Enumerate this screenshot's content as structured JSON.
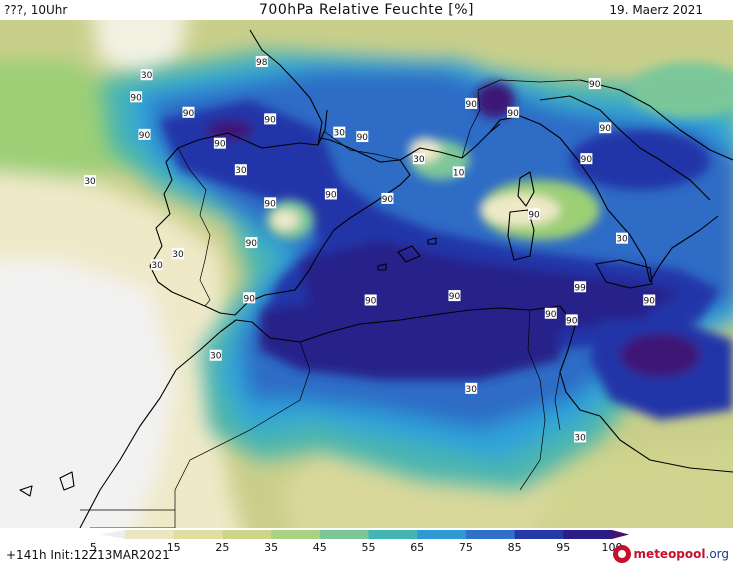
{
  "header": {
    "left": "???, 10Uhr",
    "title": "700hPa Relative Feuchte [%]",
    "date": "19. Maerz 2021"
  },
  "footer": {
    "run": "+141h  Init:12Z13MAR2021",
    "logo_main": "meteopool",
    "logo_tld": ".org"
  },
  "colors": {
    "dry": "#f4f4f4",
    "sand": "#efe9c8",
    "olive": "#c9cf8a",
    "green": "#9ccf76",
    "teal": "#49b5b0",
    "cyan": "#2fa3d9",
    "blue": "#2d6cc6",
    "darkblue": "#2436a8",
    "navy": "#27248a",
    "purple": "#3c1876"
  },
  "scale": {
    "ticks": [
      "5",
      "15",
      "25",
      "35",
      "45",
      "55",
      "65",
      "75",
      "85",
      "95",
      "100"
    ],
    "colors": [
      "#eeeeee",
      "#ece6c0",
      "#e0dfa2",
      "#cdd58a",
      "#a9d283",
      "#7cc79a",
      "#45b5b4",
      "#2e9ad4",
      "#2f70c8",
      "#253aa6",
      "#2a1e86",
      "#4a1170"
    ]
  },
  "contour_labels": [
    {
      "text": "90",
      "lon": -9.0,
      "lat": 45.0
    },
    {
      "text": "90",
      "lon": -6.5,
      "lat": 44.3
    },
    {
      "text": "90",
      "lon": -8.6,
      "lat": 43.3
    },
    {
      "text": "90",
      "lon": -5.0,
      "lat": 42.9
    },
    {
      "text": "90",
      "lon": -2.6,
      "lat": 44.0
    },
    {
      "text": "98",
      "lon": -3.0,
      "lat": 46.6
    },
    {
      "text": "30",
      "lon": -8.5,
      "lat": 46.0
    },
    {
      "text": "30",
      "lon": -11.2,
      "lat": 41.2
    },
    {
      "text": "30",
      "lon": -4.0,
      "lat": 41.7
    },
    {
      "text": "30",
      "lon": -8.0,
      "lat": 37.4
    },
    {
      "text": "30",
      "lon": -7.0,
      "lat": 37.9
    },
    {
      "text": "90",
      "lon": -2.6,
      "lat": 40.2
    },
    {
      "text": "90",
      "lon": -3.5,
      "lat": 38.4
    },
    {
      "text": "90",
      "lon": 0.3,
      "lat": 40.6
    },
    {
      "text": "90",
      "lon": 3.0,
      "lat": 40.4
    },
    {
      "text": "30",
      "lon": 0.7,
      "lat": 43.4
    },
    {
      "text": "90",
      "lon": 1.8,
      "lat": 43.2
    },
    {
      "text": "30",
      "lon": 4.5,
      "lat": 42.2
    },
    {
      "text": "10",
      "lon": 6.4,
      "lat": 41.6
    },
    {
      "text": "90",
      "lon": 7.0,
      "lat": 44.7
    },
    {
      "text": "90",
      "lon": 9.0,
      "lat": 44.3
    },
    {
      "text": "90",
      "lon": 12.9,
      "lat": 45.6
    },
    {
      "text": "90",
      "lon": 13.4,
      "lat": 43.6
    },
    {
      "text": "90",
      "lon": 12.5,
      "lat": 42.2
    },
    {
      "text": "90",
      "lon": 10.0,
      "lat": 39.7
    },
    {
      "text": "30",
      "lon": 14.2,
      "lat": 38.6
    },
    {
      "text": "99",
      "lon": 12.2,
      "lat": 36.4
    },
    {
      "text": "90",
      "lon": 15.5,
      "lat": 35.8
    },
    {
      "text": "90",
      "lon": 10.8,
      "lat": 35.2
    },
    {
      "text": "90",
      "lon": 11.8,
      "lat": 34.9
    },
    {
      "text": "90",
      "lon": -3.6,
      "lat": 35.9
    },
    {
      "text": "90",
      "lon": 2.2,
      "lat": 35.8
    },
    {
      "text": "90",
      "lon": 6.2,
      "lat": 36.0
    },
    {
      "text": "30",
      "lon": -5.2,
      "lat": 33.3
    },
    {
      "text": "30",
      "lon": 7.0,
      "lat": 31.8
    },
    {
      "text": "30",
      "lon": 12.2,
      "lat": 29.6
    }
  ]
}
